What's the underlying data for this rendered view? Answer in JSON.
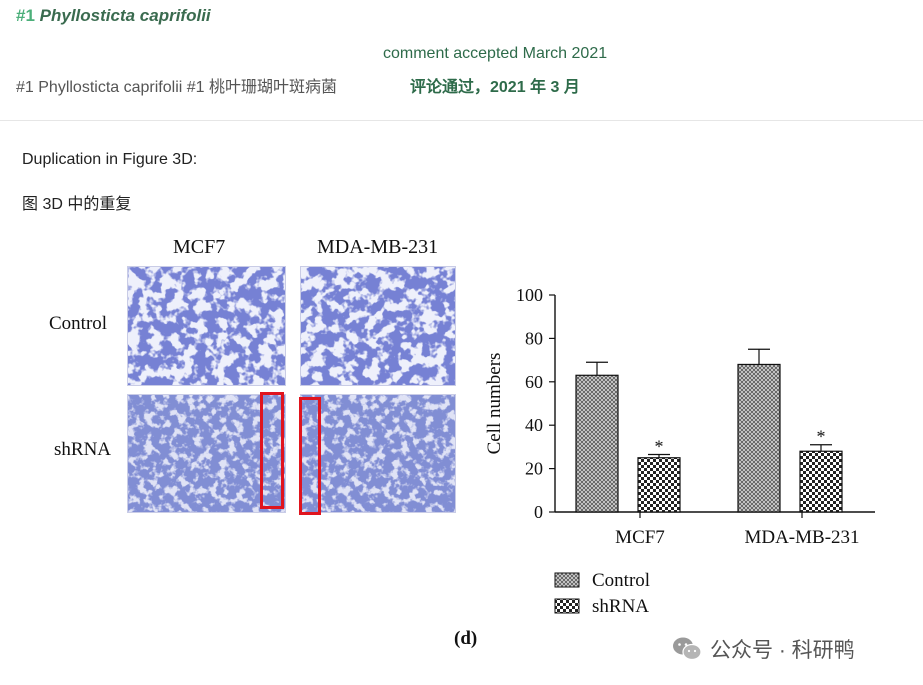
{
  "comment": {
    "number": "#1",
    "species": "Phyllosticta caprifolii",
    "accepted": "comment accepted March 2021",
    "translated_line": "#1 Phyllosticta caprifolii #1 桃叶珊瑚叶斑病菌",
    "accepted_cn": "评论通过，2021 年 3 月"
  },
  "body": {
    "duplication_en": "Duplication in Figure 3D:",
    "duplication_cn": "图 3D 中的重复"
  },
  "figure": {
    "columns": [
      "MCF7",
      "MDA-MB-231"
    ],
    "rows": [
      "Control",
      "shRNA"
    ],
    "panel_label": "(d)",
    "colors": {
      "stain": "#2f3aa8",
      "highlight": "#e0141e"
    }
  },
  "chart_data": {
    "type": "bar",
    "categories": [
      "MCF7",
      "MDA-MB-231"
    ],
    "series": [
      {
        "name": "Control",
        "values": [
          63,
          68
        ],
        "error": [
          6,
          7
        ],
        "pattern": "crosshatch-dense"
      },
      {
        "name": "shRNA",
        "values": [
          25,
          28
        ],
        "error": [
          1.5,
          3
        ],
        "pattern": "checker",
        "significance": [
          "*",
          "*"
        ]
      }
    ],
    "ylabel": "Cell numbers",
    "ylim": [
      0,
      100
    ],
    "yticks": [
      0,
      20,
      40,
      60,
      80,
      100
    ],
    "legend": "bottom-left"
  },
  "watermark": {
    "text": "公众号 · 科研鸭",
    "icon": "wechat-icon"
  }
}
